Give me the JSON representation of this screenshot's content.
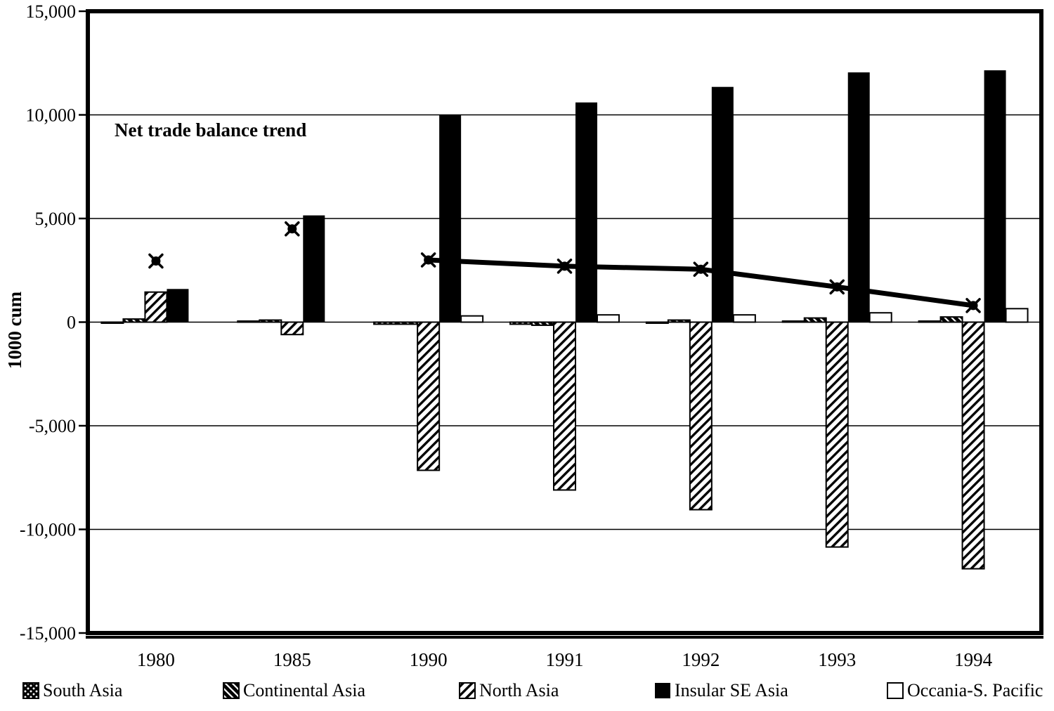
{
  "chart_data": {
    "type": "bar+line",
    "title_annotation": "Net trade balance trend",
    "ylabel": "1000 cum",
    "ylim": [
      -15000,
      15000
    ],
    "ytick_interval": 5000,
    "yticks": [
      {
        "value": 15000,
        "label": "15,000"
      },
      {
        "value": 10000,
        "label": "10,000"
      },
      {
        "value": 5000,
        "label": "5,000"
      },
      {
        "value": 0,
        "label": "0"
      },
      {
        "value": -5000,
        "label": "-5,000"
      },
      {
        "value": -10000,
        "label": "-10,000"
      },
      {
        "value": -15000,
        "label": "-15,000"
      }
    ],
    "categories": [
      "1980",
      "1985",
      "1990",
      "1991",
      "1992",
      "1993",
      "1994"
    ],
    "series": [
      {
        "name": "South Asia",
        "type": "bar",
        "pattern": "crosshatch",
        "values": [
          -50,
          50,
          -100,
          -100,
          -50,
          50,
          50
        ]
      },
      {
        "name": "Continental Asia",
        "type": "bar",
        "pattern": "diagonal-down-dark",
        "values": [
          150,
          100,
          -100,
          -150,
          100,
          200,
          250
        ]
      },
      {
        "name": "North Asia",
        "type": "bar",
        "pattern": "diagonal-up",
        "values": [
          1450,
          -600,
          -7150,
          -8100,
          -9050,
          -10850,
          -11900
        ]
      },
      {
        "name": "Insular SE Asia",
        "type": "bar",
        "pattern": "solid-black",
        "values": [
          1600,
          5150,
          10000,
          10600,
          11350,
          12050,
          12150
        ]
      },
      {
        "name": "Occania-S. Pacific",
        "type": "bar",
        "pattern": "white",
        "values": [
          0,
          0,
          300,
          350,
          350,
          450,
          650
        ]
      }
    ],
    "line_series": {
      "name": "Net trade balance trend",
      "values": [
        2950,
        4500,
        3000,
        2700,
        2550,
        1700,
        800
      ],
      "connected_from_index": 2,
      "marker": "blob"
    },
    "legend": [
      {
        "label": "South Asia",
        "pattern": "crosshatch"
      },
      {
        "label": "Continental Asia",
        "pattern": "diagonal-down-dark"
      },
      {
        "label": "North Asia",
        "pattern": "diagonal-up"
      },
      {
        "label": "Insular SE Asia",
        "pattern": "solid-black"
      },
      {
        "label": "Occania-S. Pacific",
        "pattern": "white"
      }
    ],
    "legend_position": "bottom",
    "grid": true,
    "colors": {
      "ink": "#000000",
      "background": "#ffffff"
    }
  }
}
